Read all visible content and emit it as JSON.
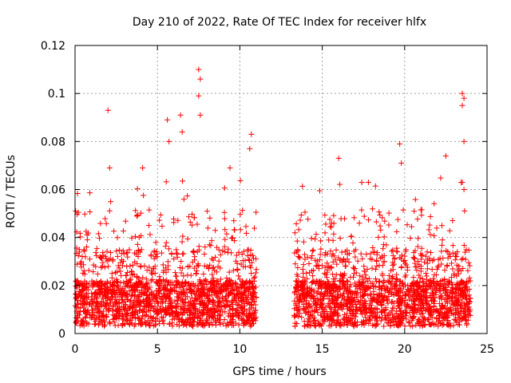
{
  "chart_data": {
    "type": "scatter",
    "title": "Day 210 of 2022, Rate Of TEC Index for receiver hlfx",
    "xlabel": "GPS time / hours",
    "ylabel": "ROTI / TECUs",
    "xlim": [
      0,
      25
    ],
    "ylim": [
      0,
      0.12
    ],
    "xticks": [
      0,
      5,
      10,
      15,
      20,
      25
    ],
    "yticks": [
      0,
      0.02,
      0.04,
      0.06,
      0.08,
      0.1,
      0.12
    ],
    "xtick_labels": [
      "0",
      "5",
      "10",
      "15",
      "20",
      "25"
    ],
    "ytick_labels": [
      "0",
      "0.02",
      "0.04",
      "0.06",
      "0.08",
      "0.1",
      "0.12"
    ],
    "grid": true,
    "marker": "plus",
    "color": "#ff0000",
    "series": [
      {
        "name": "ROTI",
        "segments": [
          {
            "start": 0.0,
            "end": 11.0
          },
          {
            "start": 13.3,
            "end": 24.0
          }
        ],
        "notable_points": [
          {
            "x": 2.0,
            "y": 0.093
          },
          {
            "x": 5.6,
            "y": 0.089
          },
          {
            "x": 6.4,
            "y": 0.091
          },
          {
            "x": 7.5,
            "y": 0.11
          },
          {
            "x": 7.6,
            "y": 0.106
          },
          {
            "x": 7.5,
            "y": 0.099
          },
          {
            "x": 7.6,
            "y": 0.091
          },
          {
            "x": 10.7,
            "y": 0.083
          },
          {
            "x": 10.6,
            "y": 0.077
          },
          {
            "x": 2.1,
            "y": 0.069
          },
          {
            "x": 4.1,
            "y": 0.069
          },
          {
            "x": 5.7,
            "y": 0.08
          },
          {
            "x": 6.5,
            "y": 0.084
          },
          {
            "x": 9.4,
            "y": 0.069
          },
          {
            "x": 16.0,
            "y": 0.073
          },
          {
            "x": 17.8,
            "y": 0.063
          },
          {
            "x": 19.7,
            "y": 0.079
          },
          {
            "x": 19.8,
            "y": 0.071
          },
          {
            "x": 22.5,
            "y": 0.074
          },
          {
            "x": 23.5,
            "y": 0.1
          },
          {
            "x": 23.6,
            "y": 0.098
          },
          {
            "x": 23.5,
            "y": 0.095
          },
          {
            "x": 23.6,
            "y": 0.08
          },
          {
            "x": 23.5,
            "y": 0.063
          },
          {
            "x": 23.6,
            "y": 0.06
          }
        ]
      }
    ]
  }
}
